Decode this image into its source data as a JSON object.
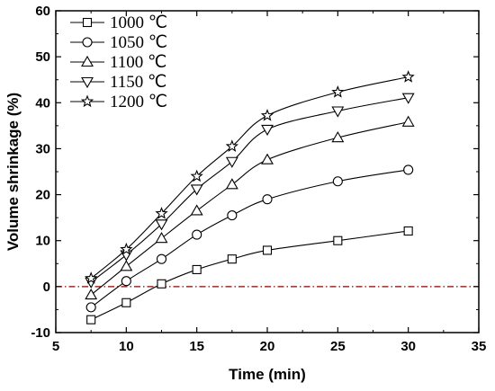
{
  "chart_data": {
    "type": "line",
    "xlabel": "Time (min)",
    "ylabel": "Volume shrinkage (%)",
    "xlim": [
      5,
      35
    ],
    "ylim": [
      -10,
      60
    ],
    "xticks": [
      5,
      10,
      15,
      20,
      25,
      30,
      35
    ],
    "yticks": [
      -10,
      0,
      10,
      20,
      30,
      40,
      50,
      60
    ],
    "xtick_labels": [
      "5",
      "10",
      "15",
      "20",
      "25",
      "30",
      "35"
    ],
    "ytick_labels": [
      "-10",
      "0",
      "10",
      "20",
      "30",
      "40",
      "50",
      "60"
    ],
    "grid": false,
    "legend_position": "top-left",
    "reference_line": {
      "y": 0,
      "style": "dash-dot",
      "color": "#8B0000"
    },
    "x": [
      7.5,
      10,
      12.5,
      15,
      17.5,
      20,
      25,
      30
    ],
    "series": [
      {
        "name": "1000 ℃",
        "marker": "square",
        "values": [
          -7.2,
          -3.5,
          0.6,
          3.7,
          6.0,
          7.9,
          10.0,
          12.1
        ]
      },
      {
        "name": "1050 ℃",
        "marker": "circle",
        "values": [
          -4.5,
          1.2,
          6.0,
          11.3,
          15.5,
          19.0,
          22.9,
          25.4
        ]
      },
      {
        "name": "1100 ℃",
        "marker": "triangle-up",
        "values": [
          -1.8,
          4.4,
          10.5,
          16.5,
          22.2,
          27.6,
          32.4,
          35.8
        ]
      },
      {
        "name": "1150 ℃",
        "marker": "triangle-down",
        "values": [
          1.0,
          6.9,
          13.6,
          21.2,
          27.2,
          34.2,
          38.2,
          41.1
        ]
      },
      {
        "name": "1200 ℃",
        "marker": "star",
        "values": [
          1.8,
          8.1,
          15.9,
          24.0,
          30.5,
          37.2,
          42.3,
          45.6
        ]
      }
    ]
  }
}
